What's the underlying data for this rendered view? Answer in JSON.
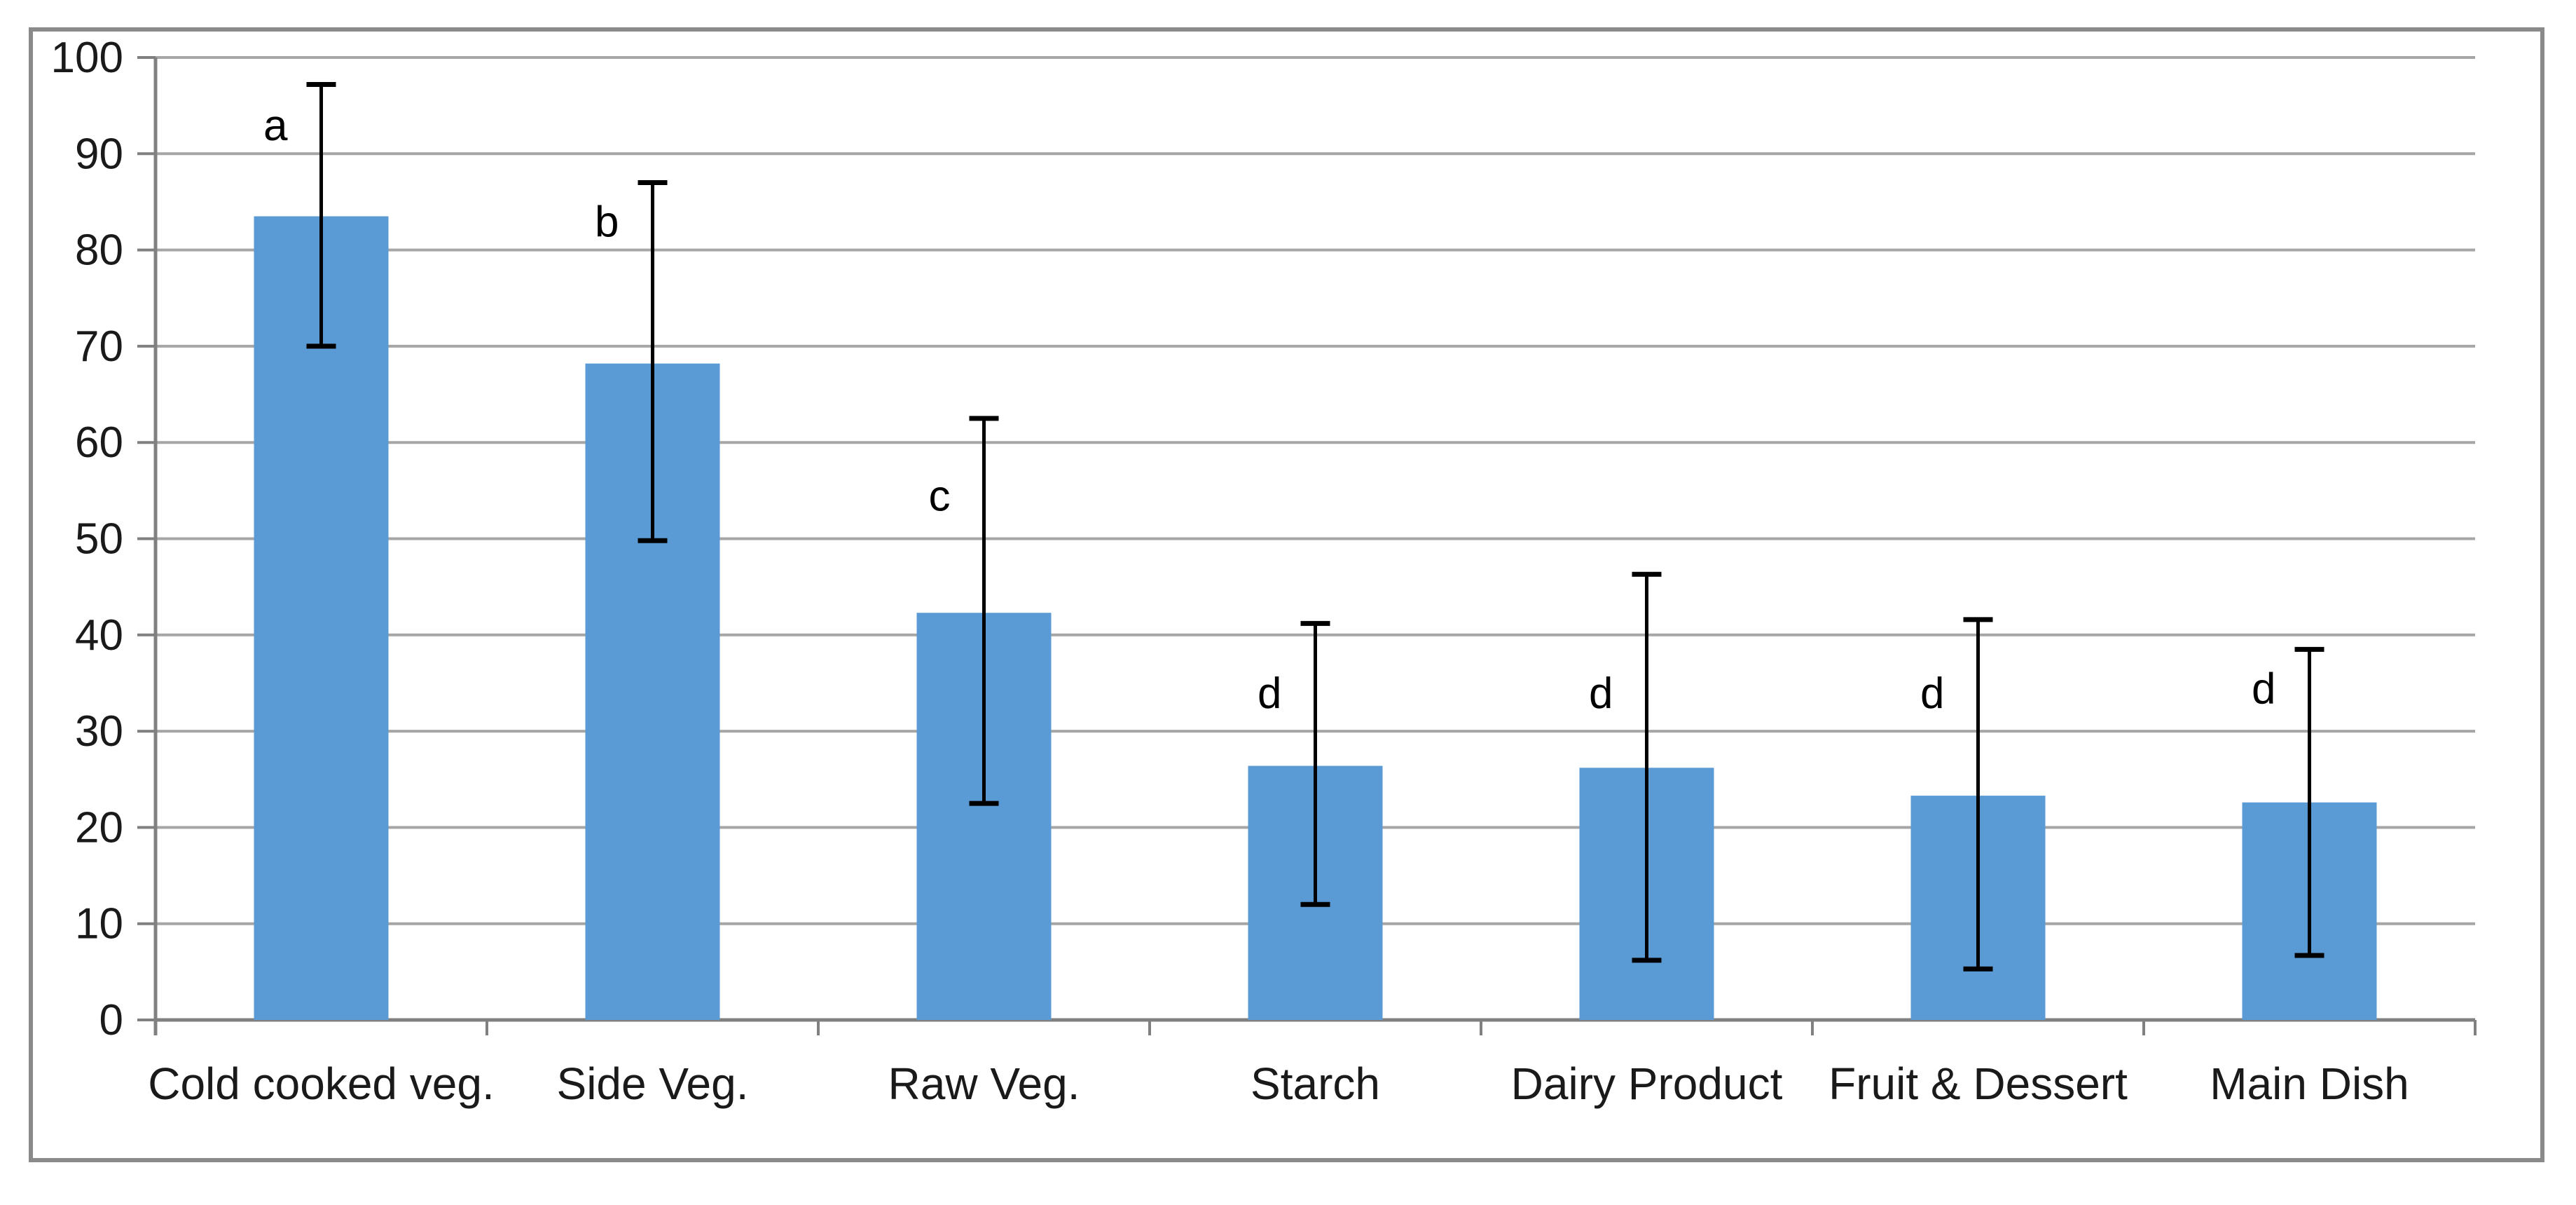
{
  "page": {
    "background": "#FFFFFF"
  },
  "chart_data": {
    "type": "bar",
    "title": "",
    "xlabel": "",
    "ylabel": "",
    "categories": [
      "Cold cooked veg.",
      "Side Veg.",
      "Raw Veg.",
      "Starch",
      "Dairy Product",
      "Fruit & Dessert",
      "Main Dish"
    ],
    "series": [
      {
        "name": "",
        "values": [
          83.5,
          68.2,
          42.3,
          26.4,
          26.2,
          23.3,
          22.6
        ]
      }
    ],
    "error_bars": {
      "upper_abs": [
        97.2,
        87.0,
        62.5,
        41.2,
        46.3,
        41.6,
        38.5
      ],
      "lower_abs": [
        70.0,
        49.8,
        22.5,
        12.0,
        6.2,
        5.3,
        6.7
      ]
    },
    "annotations": [
      {
        "label": "a",
        "y": 93.0
      },
      {
        "label": "b",
        "y": 83.0
      },
      {
        "label": "c",
        "y": 54.5
      },
      {
        "label": "d",
        "y": 34.0
      },
      {
        "label": "d",
        "y": 34.0
      },
      {
        "label": "d",
        "y": 34.0
      },
      {
        "label": "d",
        "y": 34.5
      }
    ],
    "ylim": [
      0,
      100
    ],
    "yticks": [
      0,
      10,
      20,
      30,
      40,
      50,
      60,
      70,
      80,
      90,
      100
    ],
    "grid": true,
    "legend_position": "none",
    "colors": {
      "bar": "#5B9BD5",
      "gridline": "#A6A6A6",
      "axis": "#808080",
      "tick": "#808080",
      "text": "#1A1A1A",
      "error_bar": "#000000",
      "annotation": "#000000",
      "chart_border": "#8A8A8A",
      "background": "#FFFFFF"
    }
  }
}
